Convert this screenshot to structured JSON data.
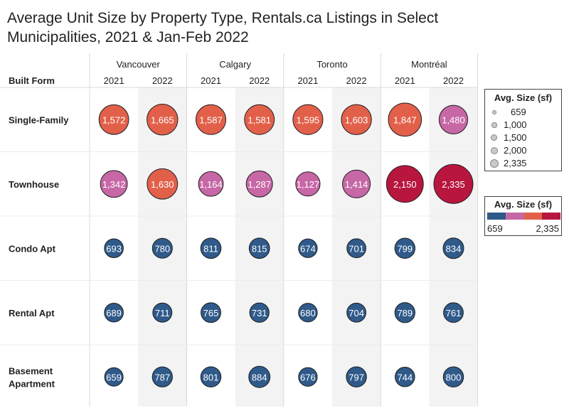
{
  "title": "Average Unit Size by Property Type, Rentals.ca Listings in Select Municipalities, 2021 & Jan-Feb 2022",
  "chart_data": {
    "type": "scatter",
    "row_header": "Built Form",
    "cities": [
      "Vancouver",
      "Calgary",
      "Toronto",
      "Montréal"
    ],
    "years": [
      "2021",
      "2022"
    ],
    "rows": [
      {
        "label": "Single-Family",
        "values": [
          1572,
          1665,
          1587,
          1581,
          1595,
          1603,
          1847,
          1480
        ]
      },
      {
        "label": "Townhouse",
        "values": [
          1342,
          1630,
          1164,
          1287,
          1127,
          1414,
          2150,
          2335
        ]
      },
      {
        "label": "Condo Apt",
        "values": [
          693,
          780,
          811,
          815,
          674,
          701,
          799,
          834
        ]
      },
      {
        "label": "Rental Apt",
        "values": [
          689,
          711,
          765,
          731,
          680,
          704,
          789,
          761
        ]
      },
      {
        "label": "Basement Apartment",
        "values": [
          659,
          787,
          801,
          884,
          676,
          797,
          744,
          800
        ]
      }
    ],
    "size_range": [
      659,
      2335
    ],
    "colors": {
      "blue": "#2f5a8a",
      "purple": "#c767a6",
      "orange": "#e2604a",
      "red": "#b8163e",
      "band": "#f3f3f3",
      "grid": "#d9d9d9"
    }
  },
  "legend_size": {
    "title": "Avg. Size (sf)",
    "items": [
      "659",
      "1,000",
      "1,500",
      "2,000",
      "2,335"
    ],
    "values": [
      659,
      1000,
      1500,
      2000,
      2335
    ]
  },
  "legend_color": {
    "title": "Avg. Size (sf)",
    "min_label": "659",
    "max_label": "2,335",
    "ramp": [
      "#2f5a8a",
      "#c767a6",
      "#e2604a",
      "#b8163e"
    ]
  }
}
